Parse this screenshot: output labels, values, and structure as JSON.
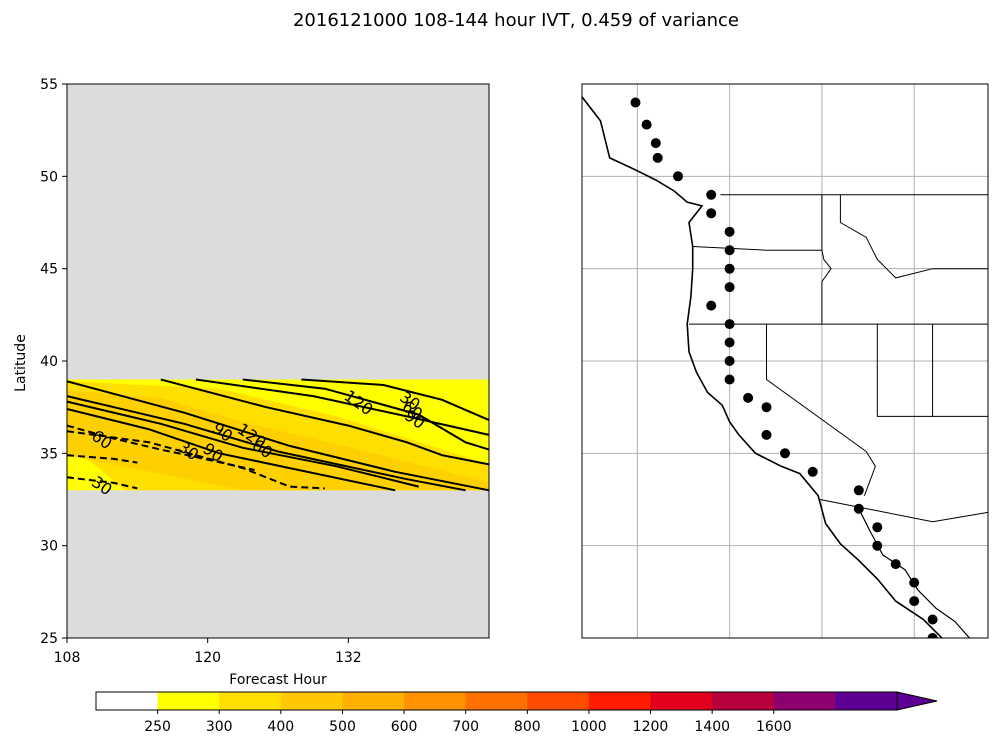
{
  "title": "2016121000 108-144 hour IVT, 0.459 of variance",
  "chart_data": {
    "type": "contour",
    "title": "2016121000 108-144 hour IVT, 0.459 of variance",
    "xlabel": "Forecast Hour",
    "ylabel": "Latitude",
    "xlim": [
      108,
      144
    ],
    "ylim": [
      25,
      55
    ],
    "xticks": [
      "108",
      "120",
      "132"
    ],
    "xtick_values": [
      108,
      120,
      132
    ],
    "yticks": [
      "25",
      "30",
      "35",
      "40",
      "45",
      "50",
      "55"
    ],
    "ytick_values": [
      25,
      30,
      35,
      40,
      45,
      50,
      55
    ],
    "data_lat_range": [
      33,
      39
    ],
    "filled_bands": [
      {
        "level": 250,
        "color": "#ffff00",
        "polygon": [
          [
            108,
            39
          ],
          [
            144,
            39
          ],
          [
            144,
            33
          ],
          [
            108,
            33
          ]
        ]
      },
      {
        "level": 300,
        "color": "#ffdf00",
        "polygon": [
          [
            108,
            38.9
          ],
          [
            121,
            38.5
          ],
          [
            131,
            37
          ],
          [
            144,
            34.4
          ],
          [
            144,
            33
          ],
          [
            113,
            33
          ],
          [
            108,
            35.6
          ]
        ]
      },
      {
        "level": 400,
        "color": "#ffd000",
        "polygon": [
          [
            108,
            38.4
          ],
          [
            116,
            38
          ],
          [
            123,
            36.7
          ],
          [
            133,
            35.2
          ],
          [
            144,
            33.4
          ],
          [
            144,
            33
          ],
          [
            123,
            33
          ],
          [
            108,
            34.9
          ]
        ]
      }
    ],
    "contours": [
      {
        "level": 30,
        "style": "solid",
        "points": [
          [
            108,
            38.9
          ],
          [
            118,
            37.2
          ],
          [
            127,
            35.4
          ],
          [
            136,
            34
          ],
          [
            144,
            33
          ]
        ]
      },
      {
        "level": 60,
        "style": "solid",
        "points": [
          [
            108,
            38.1
          ],
          [
            118,
            36.6
          ],
          [
            126,
            35.1
          ],
          [
            137,
            33.6
          ],
          [
            142,
            33
          ]
        ]
      },
      {
        "level": 90,
        "style": "solid",
        "points": [
          [
            108,
            37.8
          ],
          [
            116,
            36.6
          ],
          [
            123,
            35.3
          ],
          [
            131,
            34.3
          ],
          [
            138,
            33.2
          ]
        ]
      },
      {
        "level": 120,
        "style": "solid",
        "points": [
          [
            108,
            37.4
          ],
          [
            115,
            36.3
          ],
          [
            121,
            35
          ],
          [
            127,
            34.2
          ],
          [
            136,
            33
          ]
        ]
      },
      {
        "level": 30,
        "style": "solid",
        "points": [
          [
            119,
            39
          ],
          [
            129,
            38.1
          ],
          [
            137,
            37
          ],
          [
            144,
            36
          ]
        ]
      },
      {
        "level": 60,
        "style": "solid",
        "points": [
          [
            123,
            39
          ],
          [
            130,
            38.5
          ],
          [
            138,
            37.1
          ],
          [
            142,
            35.6
          ],
          [
            144,
            35.2
          ]
        ]
      },
      {
        "level": 90,
        "style": "solid",
        "points": [
          [
            128,
            39
          ],
          [
            135,
            38.7
          ],
          [
            140,
            37.9
          ],
          [
            144,
            36.8
          ]
        ]
      },
      {
        "level": 120,
        "style": "solid",
        "points": [
          [
            116,
            39
          ],
          [
            125,
            37.5
          ],
          [
            132,
            36.5
          ],
          [
            137,
            35.6
          ],
          [
            140,
            34.9
          ],
          [
            144,
            34.4
          ]
        ]
      },
      {
        "level": -30,
        "style": "dashed",
        "points": [
          [
            108,
            36.2
          ],
          [
            115,
            35.6
          ],
          [
            123,
            34.2
          ],
          [
            127,
            33.2
          ],
          [
            130,
            33.1
          ]
        ]
      },
      {
        "level": -60,
        "style": "dashed",
        "points": [
          [
            108,
            36.5
          ],
          [
            112,
            35.8
          ],
          [
            116,
            35.2
          ],
          [
            119,
            34.8
          ],
          [
            124,
            34.1
          ]
        ]
      },
      {
        "level": -90,
        "style": "dashed",
        "points": [
          [
            108,
            34.9
          ],
          [
            112,
            34.7
          ],
          [
            114,
            34.5
          ]
        ]
      },
      {
        "level": -30,
        "style": "dashed",
        "points": [
          [
            108,
            33.7
          ],
          [
            112,
            33.4
          ],
          [
            114,
            33.1
          ]
        ]
      }
    ],
    "contour_labels": [
      {
        "text": "30",
        "x": 137,
        "y": 37.6
      },
      {
        "text": "60",
        "x": 137.2,
        "y": 37.1
      },
      {
        "text": "90",
        "x": 137.4,
        "y": 36.6
      },
      {
        "text": "120",
        "x": 132.6,
        "y": 37.5
      },
      {
        "text": "120",
        "x": 123.5,
        "y": 35.7
      },
      {
        "text": "60",
        "x": 124.4,
        "y": 35
      },
      {
        "text": "90",
        "x": 121,
        "y": 35.9
      },
      {
        "text": "90",
        "x": 120.2,
        "y": 34.8
      },
      {
        "text": "30",
        "x": 118.1,
        "y": 34.9
      },
      {
        "text": "60",
        "x": 110.7,
        "y": 35.5
      },
      {
        "text": "30",
        "x": 110.7,
        "y": 33
      }
    ],
    "map": {
      "lon_range": [
        -130,
        -108
      ],
      "lat_range": [
        25,
        55
      ],
      "gridlines_lon": [
        -127,
        -122,
        -117,
        -112
      ],
      "gridlines_lat": [
        30,
        35,
        40,
        45,
        50
      ],
      "coastline": [
        [
          -130,
          54.3
        ],
        [
          -129,
          53
        ],
        [
          -128.5,
          51
        ],
        [
          -127,
          50.3
        ],
        [
          -126,
          49.8
        ],
        [
          -125,
          49.2
        ],
        [
          -124.3,
          48.6
        ],
        [
          -123.5,
          48.4
        ],
        [
          -124.2,
          47.5
        ],
        [
          -124,
          46.2
        ],
        [
          -124,
          45
        ],
        [
          -124.1,
          43.5
        ],
        [
          -124.3,
          42
        ],
        [
          -124.2,
          40.5
        ],
        [
          -123.8,
          39.4
        ],
        [
          -123.2,
          38.3
        ],
        [
          -122.4,
          37.6
        ],
        [
          -122,
          36.7
        ],
        [
          -121.5,
          36
        ],
        [
          -120.6,
          35
        ],
        [
          -119.2,
          34.3
        ],
        [
          -118.2,
          33.9
        ],
        [
          -117.2,
          32.7
        ],
        [
          -116.8,
          31.2
        ],
        [
          -116,
          30.1
        ],
        [
          -115,
          29.2
        ],
        [
          -114,
          28.2
        ],
        [
          -113,
          27
        ],
        [
          -111.5,
          26
        ],
        [
          -110.5,
          25
        ]
      ],
      "gulf_coast": [
        [
          -115,
          32
        ],
        [
          -114.4,
          30.8
        ],
        [
          -113.7,
          29.5
        ],
        [
          -112.5,
          28.7
        ],
        [
          -111.8,
          27.6
        ],
        [
          -110.8,
          26.6
        ],
        [
          -109.8,
          25.9
        ],
        [
          -109,
          25
        ]
      ],
      "borders": [
        [
          [
            -122.5,
            49
          ],
          [
            -108,
            49
          ]
        ],
        [
          [
            -124,
            46.2
          ],
          [
            -120,
            46
          ],
          [
            -117,
            46
          ],
          [
            -117,
            49
          ]
        ],
        [
          [
            -117,
            46
          ],
          [
            -116.9,
            45.5
          ],
          [
            -116.5,
            45
          ],
          [
            -117,
            44.3
          ],
          [
            -117,
            42
          ]
        ],
        [
          [
            -124.2,
            42
          ],
          [
            -108,
            42
          ]
        ],
        [
          [
            -120,
            42
          ],
          [
            -120,
            39
          ],
          [
            -114.6,
            35.1
          ]
        ],
        [
          [
            -114.6,
            35.1
          ],
          [
            -114.1,
            34.3
          ],
          [
            -114.7,
            32.7
          ]
        ],
        [
          [
            -117.1,
            32.5
          ],
          [
            -111,
            31.3
          ],
          [
            -108,
            31.8
          ]
        ],
        [
          [
            -114,
            42
          ],
          [
            -114,
            37
          ],
          [
            -111,
            37
          ]
        ],
        [
          [
            -111,
            42
          ],
          [
            -111,
            37
          ],
          [
            -108,
            37
          ]
        ],
        [
          [
            -111,
            45
          ],
          [
            -113,
            44.5
          ],
          [
            -114,
            45.5
          ],
          [
            -114.6,
            46.7
          ],
          [
            -116,
            47.5
          ],
          [
            -116,
            49
          ]
        ],
        [
          [
            -111,
            45
          ],
          [
            -108,
            45
          ]
        ]
      ],
      "points": [
        [
          -127.1,
          54
        ],
        [
          -126.5,
          52.8
        ],
        [
          -126,
          51.8
        ],
        [
          -125.9,
          51
        ],
        [
          -124.8,
          50
        ],
        [
          -123,
          49
        ],
        [
          -123,
          48
        ],
        [
          -122,
          47
        ],
        [
          -122,
          46
        ],
        [
          -122,
          45
        ],
        [
          -122,
          44
        ],
        [
          -123,
          43
        ],
        [
          -122,
          42
        ],
        [
          -122,
          41
        ],
        [
          -122,
          40
        ],
        [
          -122,
          39
        ],
        [
          -121,
          38
        ],
        [
          -120,
          37.5
        ],
        [
          -120,
          36
        ],
        [
          -119,
          35
        ],
        [
          -117.5,
          34
        ],
        [
          -115,
          33
        ],
        [
          -115,
          32
        ],
        [
          -114,
          31
        ],
        [
          -114,
          30
        ],
        [
          -113,
          29
        ],
        [
          -112,
          28
        ],
        [
          -112,
          27
        ],
        [
          -111,
          26
        ],
        [
          -111,
          25
        ]
      ]
    },
    "colorbar": {
      "levels": [
        "250",
        "300",
        "400",
        "500",
        "600",
        "700",
        "800",
        "1000",
        "1200",
        "1400",
        "1600"
      ],
      "colors": [
        "#ffffff",
        "#ffff00",
        "#ffdf00",
        "#ffc800",
        "#ffb000",
        "#ff9200",
        "#ff7000",
        "#ff4c00",
        "#ff1c00",
        "#e0001e",
        "#b8003c",
        "#8c0070",
        "#5e0094"
      ]
    }
  }
}
